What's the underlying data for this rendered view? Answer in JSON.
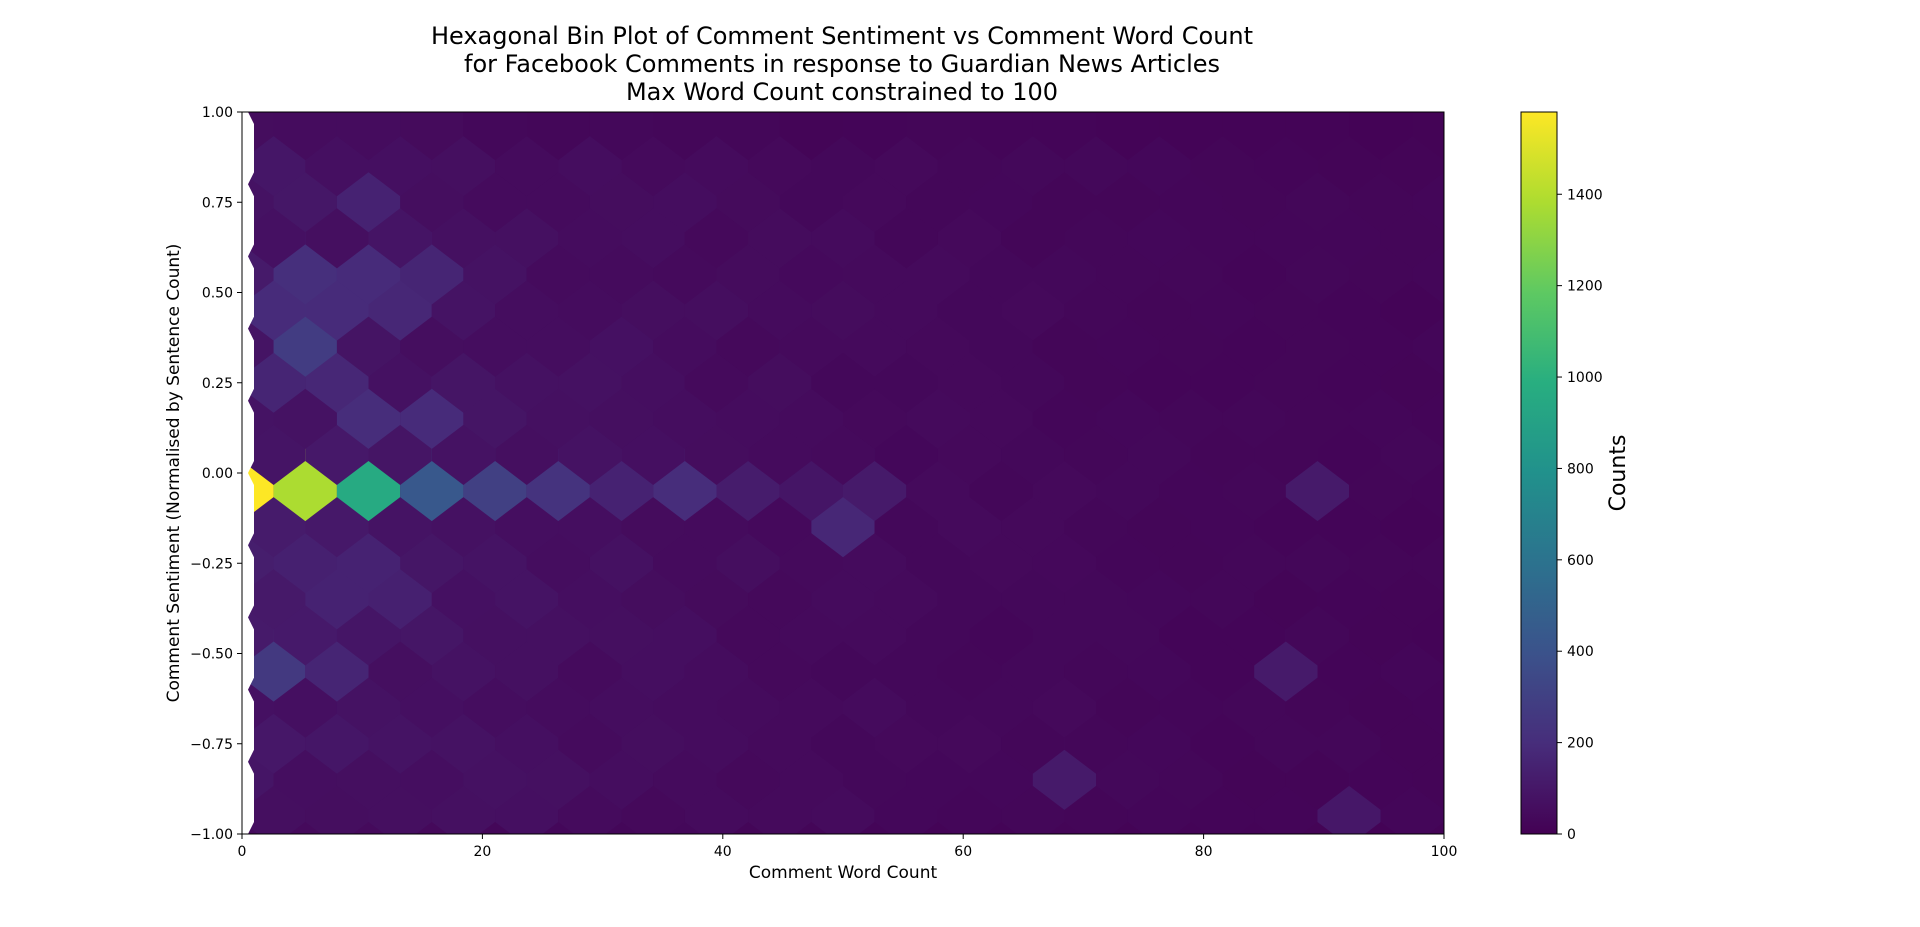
{
  "chart_data": {
    "type": "hexbin",
    "title_lines": [
      "Hexagonal Bin Plot of Comment Sentiment vs Comment Word Count",
      "for Facebook Comments in response to Guardian News Articles",
      "Max Word Count constrained to 100"
    ],
    "xlabel": "Comment Word Count",
    "ylabel": "Comment Sentiment (Normalised by Sentence Count)",
    "xlim": [
      0,
      100
    ],
    "ylim": [
      -1.0,
      1.0
    ],
    "x_ticks": [
      "0",
      "20",
      "40",
      "60",
      "80",
      "100"
    ],
    "y_ticks": [
      "−1.00",
      "−0.75",
      "−0.50",
      "−0.25",
      "0.00",
      "0.25",
      "0.50",
      "0.75",
      "1.00"
    ],
    "colorbar": {
      "label": "Counts",
      "range": [
        0,
        1580
      ],
      "ticks": [
        "0",
        "200",
        "400",
        "600",
        "800",
        "1000",
        "1200",
        "1400"
      ],
      "colormap": "viridis"
    },
    "grid": false,
    "notable_bins": [
      {
        "x": 0,
        "y": 0.0,
        "count": 1580
      },
      {
        "x": 5.3,
        "y": 0.0,
        "count": 1380
      },
      {
        "x": 10.6,
        "y": 0.0,
        "count": 960
      },
      {
        "x": 15.8,
        "y": 0.0,
        "count": 430
      },
      {
        "x": 21.1,
        "y": 0.0,
        "count": 300
      },
      {
        "x": 26.3,
        "y": 0.0,
        "count": 230
      },
      {
        "x": 31.6,
        "y": 0.0,
        "count": 150
      },
      {
        "x": 36.8,
        "y": 0.0,
        "count": 200
      },
      {
        "x": 42.1,
        "y": 0.0,
        "count": 120
      },
      {
        "x": 47.4,
        "y": 0.0,
        "count": 90
      },
      {
        "x": 52.6,
        "y": 0.0,
        "count": 110
      },
      {
        "x": 89.5,
        "y": 0.0,
        "count": 110
      },
      {
        "x": 5.3,
        "y": 0.4,
        "count": 280
      },
      {
        "x": 2.6,
        "y": 0.5,
        "count": 190
      },
      {
        "x": 7.9,
        "y": 0.5,
        "count": 190
      },
      {
        "x": 5.3,
        "y": 0.6,
        "count": 210
      },
      {
        "x": 10.6,
        "y": 0.6,
        "count": 190
      },
      {
        "x": 13.2,
        "y": 0.5,
        "count": 170
      },
      {
        "x": 10.6,
        "y": 0.8,
        "count": 150
      },
      {
        "x": 15.8,
        "y": 0.6,
        "count": 160
      },
      {
        "x": 10.6,
        "y": 0.2,
        "count": 200
      },
      {
        "x": 15.8,
        "y": 0.2,
        "count": 190
      },
      {
        "x": 2.6,
        "y": 0.3,
        "count": 160
      },
      {
        "x": 7.9,
        "y": 0.3,
        "count": 170
      },
      {
        "x": 2.6,
        "y": -0.5,
        "count": 260
      },
      {
        "x": 7.9,
        "y": -0.5,
        "count": 160
      },
      {
        "x": 7.9,
        "y": -0.3,
        "count": 150
      },
      {
        "x": 5.3,
        "y": -0.2,
        "count": 140
      },
      {
        "x": 10.6,
        "y": -0.2,
        "count": 150
      },
      {
        "x": 13.2,
        "y": -0.3,
        "count": 140
      },
      {
        "x": 50.0,
        "y": -0.1,
        "count": 170
      },
      {
        "x": 86.8,
        "y": -0.5,
        "count": 110
      },
      {
        "x": 68.4,
        "y": -0.8,
        "count": 110
      },
      {
        "x": 92.1,
        "y": -0.9,
        "count": 100
      }
    ]
  }
}
